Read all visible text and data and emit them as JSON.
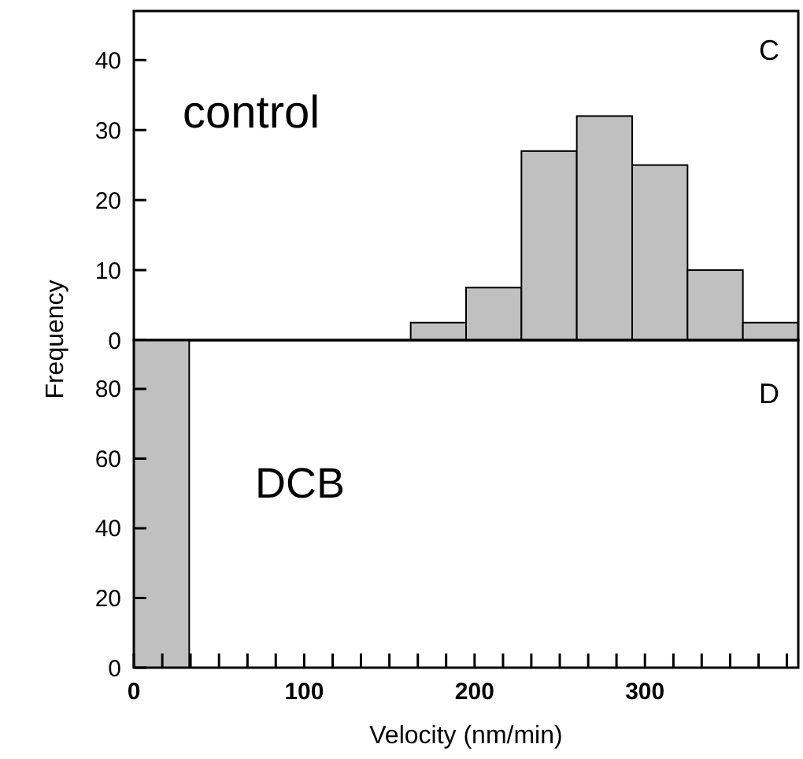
{
  "chart_data": [
    {
      "type": "histogram",
      "ylabel": "Frequency",
      "bins": [
        0,
        32.5,
        65,
        97.5,
        130,
        162.5,
        195,
        227.5,
        260,
        292.5,
        325,
        357.5,
        390
      ],
      "values": [
        0,
        0,
        0,
        0,
        0,
        2.5,
        7.5,
        27,
        32,
        25,
        10,
        2.5
      ],
      "color": "#c0c0c0",
      "xlim": [
        0,
        390
      ],
      "ylim": [
        0,
        47
      ],
      "yticks": [
        0,
        10,
        20,
        30,
        40
      ],
      "tick_labels": "y",
      "annotations": [
        "control",
        "C"
      ]
    },
    {
      "type": "histogram",
      "xlabel": "Velocity (nm/min)",
      "bins": [
        0,
        32.5,
        65,
        97.5,
        130,
        162.5,
        195,
        227.5,
        260,
        292.5,
        325,
        357.5,
        390
      ],
      "values": [
        94,
        0,
        0,
        0,
        0,
        0,
        0,
        0,
        0,
        0,
        0,
        0
      ],
      "color": "#c0c0c0",
      "xlim": [
        0,
        390
      ],
      "ylim": [
        0,
        94
      ],
      "yticks": [
        0,
        20,
        40,
        60,
        80
      ],
      "xticks": [
        0,
        {
          "value": 16.7,
          "label": null
        },
        {
          "value": 33.3,
          "label": null
        },
        {
          "value": 50,
          "label": null
        },
        {
          "value": 66.7,
          "label": null
        },
        {
          "value": 83.3,
          "label": null
        },
        100,
        {
          "value": 116.7,
          "label": null
        },
        {
          "value": 133.3,
          "label": null
        },
        {
          "value": 150,
          "label": null
        },
        {
          "value": 166.7,
          "label": null
        },
        {
          "value": 183.3,
          "label": null
        },
        200,
        {
          "value": 216.7,
          "label": null
        },
        {
          "value": 233.3,
          "label": null
        },
        {
          "value": 250,
          "label": null
        },
        {
          "value": 266.7,
          "label": null
        },
        {
          "value": 283.3,
          "label": null
        },
        300,
        {
          "value": 316.7,
          "label": null
        },
        {
          "value": 333.3,
          "label": null
        },
        {
          "value": 350,
          "label": null
        },
        {
          "value": 366.7,
          "label": null
        },
        {
          "value": 383.3,
          "label": null
        }
      ],
      "annotations": [
        "DCB",
        "D"
      ]
    }
  ]
}
